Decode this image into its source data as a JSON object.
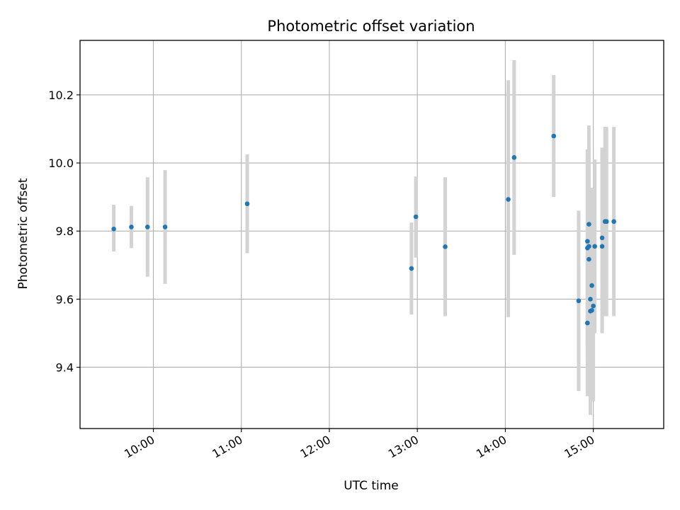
{
  "chart_data": {
    "type": "scatter",
    "title": "Photometric offset variation",
    "xlabel": "UTC time",
    "ylabel": "Photometric offset",
    "xlim": [
      "09:10",
      "15:48"
    ],
    "ylim": [
      9.22,
      10.36
    ],
    "x_ticks": [
      "10:00",
      "11:00",
      "12:00",
      "13:00",
      "14:00",
      "15:00"
    ],
    "y_ticks": [
      "9.4",
      "9.6",
      "9.8",
      "10.0",
      "10.2"
    ],
    "grid": true,
    "colors": {
      "marker": "#1f77b4",
      "errorbar": "#d3d3d3",
      "grid": "#b0b0b0"
    },
    "points": [
      {
        "x": "09:33",
        "y": 9.806,
        "ylo": 9.74,
        "yhi": 9.877
      },
      {
        "x": "09:45",
        "y": 9.812,
        "ylo": 9.75,
        "yhi": 9.874
      },
      {
        "x": "09:56",
        "y": 9.812,
        "ylo": 9.666,
        "yhi": 9.958
      },
      {
        "x": "10:08",
        "y": 9.812,
        "ylo": 9.645,
        "yhi": 9.979
      },
      {
        "x": "11:04",
        "y": 9.88,
        "ylo": 9.735,
        "yhi": 10.025
      },
      {
        "x": "12:56",
        "y": 9.69,
        "ylo": 9.555,
        "yhi": 9.825
      },
      {
        "x": "12:59",
        "y": 9.842,
        "ylo": 9.722,
        "yhi": 9.96
      },
      {
        "x": "13:19",
        "y": 9.754,
        "ylo": 9.55,
        "yhi": 9.958
      },
      {
        "x": "14:02",
        "y": 9.893,
        "ylo": 9.547,
        "yhi": 10.243
      },
      {
        "x": "14:06",
        "y": 10.016,
        "ylo": 9.73,
        "yhi": 10.302
      },
      {
        "x": "14:33",
        "y": 10.079,
        "ylo": 9.9,
        "yhi": 10.258
      },
      {
        "x": "14:50",
        "y": 9.595,
        "ylo": 9.33,
        "yhi": 9.86
      },
      {
        "x": "14:56",
        "y": 9.53,
        "ylo": 9.315,
        "yhi": 9.745
      },
      {
        "x": "14:56",
        "y": 9.77,
        "ylo": 9.43,
        "yhi": 10.04
      },
      {
        "x": "14:56",
        "y": 9.75,
        "ylo": 9.47,
        "yhi": 10.03
      },
      {
        "x": "14:57",
        "y": 9.82,
        "ylo": 9.54,
        "yhi": 10.11
      },
      {
        "x": "14:57",
        "y": 9.755,
        "ylo": 9.48,
        "yhi": 10.02
      },
      {
        "x": "14:57",
        "y": 9.717,
        "ylo": 9.4,
        "yhi": 10.04
      },
      {
        "x": "14:58",
        "y": 9.6,
        "ylo": 9.27,
        "yhi": 9.925
      },
      {
        "x": "14:58",
        "y": 9.565,
        "ylo": 9.26,
        "yhi": 9.87
      },
      {
        "x": "14:59",
        "y": 9.567,
        "ylo": 9.3,
        "yhi": 9.83
      },
      {
        "x": "14:59",
        "y": 9.64,
        "ylo": 9.36,
        "yhi": 9.927
      },
      {
        "x": "15:00",
        "y": 9.58,
        "ylo": 9.3,
        "yhi": 9.87
      },
      {
        "x": "15:01",
        "y": 9.755,
        "ylo": 9.5,
        "yhi": 10.01
      },
      {
        "x": "15:06",
        "y": 9.755,
        "ylo": 9.5,
        "yhi": 10.01
      },
      {
        "x": "15:06",
        "y": 9.78,
        "ylo": 9.515,
        "yhi": 10.045
      },
      {
        "x": "15:08",
        "y": 9.828,
        "ylo": 9.55,
        "yhi": 10.106
      },
      {
        "x": "15:09",
        "y": 9.828,
        "ylo": 9.55,
        "yhi": 10.106
      },
      {
        "x": "15:14",
        "y": 9.828,
        "ylo": 9.55,
        "yhi": 10.106
      }
    ]
  }
}
